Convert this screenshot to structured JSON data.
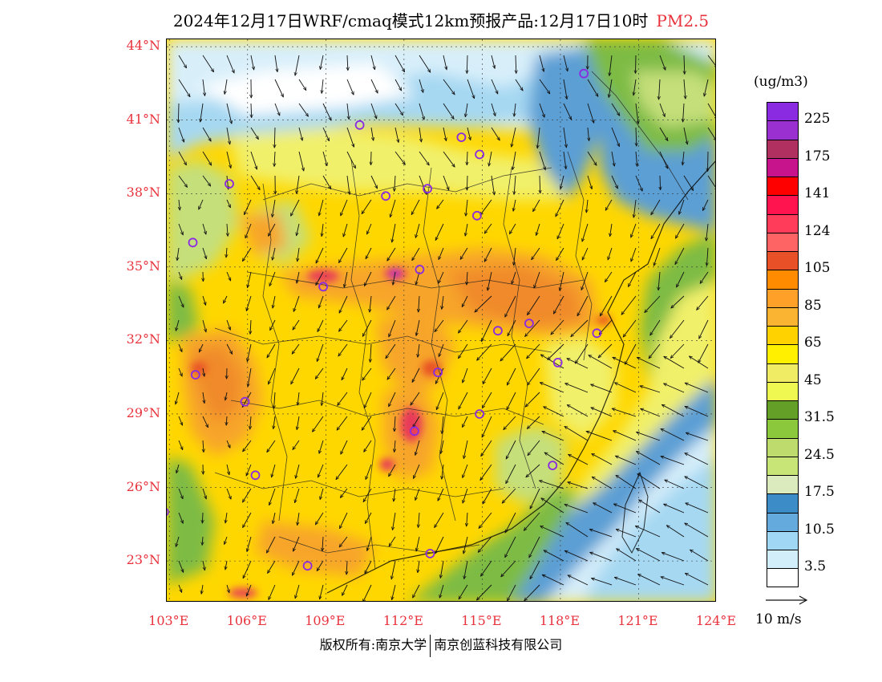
{
  "title": {
    "main": "2024年12月17日WRF/cmaq模式12km预报产品:12月17日10时",
    "pollutant": "PM2.5"
  },
  "axes": {
    "lat_labels": [
      {
        "label": "44°N",
        "value": 44
      },
      {
        "label": "41°N",
        "value": 41
      },
      {
        "label": "38°N",
        "value": 38
      },
      {
        "label": "35°N",
        "value": 35
      },
      {
        "label": "32°N",
        "value": 32
      },
      {
        "label": "29°N",
        "value": 29
      },
      {
        "label": "26°N",
        "value": 26
      },
      {
        "label": "23°N",
        "value": 23
      }
    ],
    "lon_labels": [
      {
        "label": "103°E",
        "value": 103
      },
      {
        "label": "106°E",
        "value": 106
      },
      {
        "label": "109°E",
        "value": 109
      },
      {
        "label": "112°E",
        "value": 112
      },
      {
        "label": "115°E",
        "value": 115
      },
      {
        "label": "118°E",
        "value": 118
      },
      {
        "label": "121°E",
        "value": 121
      },
      {
        "label": "124°E",
        "value": 124
      }
    ],
    "lon_range": [
      102.9,
      124.0
    ],
    "lat_range": [
      21.3,
      44.3
    ]
  },
  "legend": {
    "unit": "(ug/m3)",
    "colors": [
      "#8a2be2",
      "#9a30d0",
      "#b03060",
      "#c8148c",
      "#ff0000",
      "#ff1450",
      "#ff3c5a",
      "#ff6464",
      "#e85028",
      "#ff8c00",
      "#ffa028",
      "#fab432",
      "#ffd200",
      "#fff000",
      "#f0ec64",
      "#eef850",
      "#64a028",
      "#8cc83c",
      "#bedc6e",
      "#c8e678",
      "#dcebbe",
      "#3c8cc8",
      "#64aadc",
      "#a0d7f5",
      "#d2eefa",
      "#ffffff"
    ],
    "labels": [
      {
        "text": "225",
        "slot": 1
      },
      {
        "text": "175",
        "slot": 3
      },
      {
        "text": "141",
        "slot": 5
      },
      {
        "text": "124",
        "slot": 7
      },
      {
        "text": "105",
        "slot": 9
      },
      {
        "text": "85",
        "slot": 11
      },
      {
        "text": "65",
        "slot": 13
      },
      {
        "text": "45",
        "slot": 15
      },
      {
        "text": "31.5",
        "slot": 17
      },
      {
        "text": "24.5",
        "slot": 19
      },
      {
        "text": "17.5",
        "slot": 21
      },
      {
        "text": "10.5",
        "slot": 23
      },
      {
        "text": "3.5",
        "slot": 25
      }
    ],
    "reference_vector": "10 m/s"
  },
  "map_colors": {
    "base": "#ffd700",
    "fill_low_blue": "#5b9fd4",
    "fill_light_blue": "#a6d8f2",
    "fill_pale_blue": "#d8effa",
    "fill_green": "#7dbb45",
    "fill_light_green": "#c5df7a",
    "fill_pale_yellow": "#f1f06a",
    "fill_orange": "#f7a52a",
    "fill_dark_orange": "#f08a2c",
    "fill_red": "#e83a5a",
    "fill_purple": "#8a2be2"
  },
  "stations": [
    {
      "lon": 118.9,
      "lat": 42.9
    },
    {
      "lon": 110.3,
      "lat": 40.8
    },
    {
      "lon": 114.2,
      "lat": 40.3
    },
    {
      "lon": 114.9,
      "lat": 39.6
    },
    {
      "lon": 105.3,
      "lat": 38.4
    },
    {
      "lon": 111.3,
      "lat": 37.9
    },
    {
      "lon": 112.9,
      "lat": 38.2
    },
    {
      "lon": 114.8,
      "lat": 37.1
    },
    {
      "lon": 103.9,
      "lat": 36.0
    },
    {
      "lon": 112.6,
      "lat": 34.9
    },
    {
      "lon": 108.9,
      "lat": 34.2
    },
    {
      "lon": 116.8,
      "lat": 32.7
    },
    {
      "lon": 115.6,
      "lat": 32.4
    },
    {
      "lon": 119.4,
      "lat": 32.3
    },
    {
      "lon": 117.9,
      "lat": 31.1
    },
    {
      "lon": 104.0,
      "lat": 30.6
    },
    {
      "lon": 113.3,
      "lat": 30.7
    },
    {
      "lon": 105.9,
      "lat": 29.5
    },
    {
      "lon": 114.9,
      "lat": 29.0
    },
    {
      "lon": 112.4,
      "lat": 28.3
    },
    {
      "lon": 106.3,
      "lat": 26.5
    },
    {
      "lon": 117.7,
      "lat": 26.9
    },
    {
      "lon": 102.8,
      "lat": 25.0
    },
    {
      "lon": 113.0,
      "lat": 23.3
    },
    {
      "lon": 108.3,
      "lat": 22.8
    }
  ],
  "footer": {
    "left": "版权所有:南京大学",
    "right": "南京创蓝科技有限公司"
  }
}
